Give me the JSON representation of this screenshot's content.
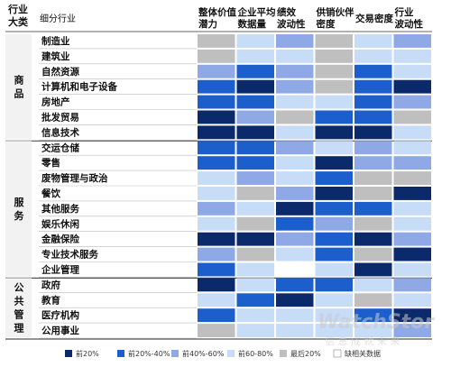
{
  "chart_data": {
    "type": "heatmap",
    "header": {
      "category_col": "行业\n大类",
      "subcategory_col": "细分行业",
      "columns": [
        "整体价值\n潜力",
        "企业平均\n数据量",
        "绩效\n波动性",
        "供销伙伴\n密度",
        "交易密度",
        "行业\n波动性"
      ]
    },
    "groups": [
      {
        "name": "商\n品",
        "rows": [
          "制造业",
          "建筑业",
          "自然资源",
          "计算机和电子设备",
          "房地产",
          "批发贸易",
          "信息技术"
        ]
      },
      {
        "name": "服\n务",
        "rows": [
          "交运仓储",
          "零售",
          "废物管理与政治",
          "餐饮",
          "其他服务",
          "娱乐休闲",
          "金融保险",
          "专业技术服务",
          "企业管理"
        ]
      },
      {
        "name": "公\n共\n管\n理",
        "rows": [
          "政府",
          "教育",
          "医疗机构",
          "公用事业"
        ]
      }
    ],
    "levels": [
      {
        "label": "前20%",
        "color": "#0b2a6b"
      },
      {
        "label": "前20%-40%",
        "color": "#1c5fcc"
      },
      {
        "label": "前40%-60%",
        "color": "#8ea9e6"
      },
      {
        "label": "前60-80%",
        "color": "#c7dcf6"
      },
      {
        "label": "最后20%",
        "color": "#bfbfbf"
      },
      {
        "label": "缺相关数据",
        "color": "#ffffff"
      }
    ],
    "values": [
      [
        4,
        3,
        2,
        4,
        3,
        2
      ],
      [
        4,
        3,
        3,
        4,
        3,
        3
      ],
      [
        2,
        1,
        2,
        4,
        1,
        3
      ],
      [
        1,
        0,
        2,
        4,
        1,
        0
      ],
      [
        1,
        1,
        3,
        3,
        1,
        2
      ],
      [
        0,
        2,
        4,
        1,
        1,
        4
      ],
      [
        0,
        0,
        3,
        0,
        0,
        3
      ],
      [
        1,
        1,
        2,
        3,
        2,
        3
      ],
      [
        1,
        1,
        3,
        0,
        2,
        2
      ],
      [
        3,
        2,
        3,
        1,
        4,
        4
      ],
      [
        3,
        4,
        2,
        0,
        4,
        0
      ],
      [
        2,
        3,
        0,
        1,
        1,
        3
      ],
      [
        3,
        4,
        1,
        2,
        4,
        3
      ],
      [
        0,
        0,
        2,
        1,
        0,
        2
      ],
      [
        2,
        4,
        3,
        1,
        4,
        0
      ],
      [
        1,
        3,
        5,
        3,
        0,
        3
      ],
      [
        0,
        3,
        1,
        1,
        3,
        2
      ],
      [
        3,
        1,
        0,
        3,
        4,
        3
      ],
      [
        1,
        3,
        3,
        3,
        1,
        0
      ],
      [
        4,
        3,
        3,
        3,
        3,
        2
      ]
    ]
  },
  "watermark": {
    "main": "WatchStor",
    "sub": "信 息 成 就 未 来"
  }
}
